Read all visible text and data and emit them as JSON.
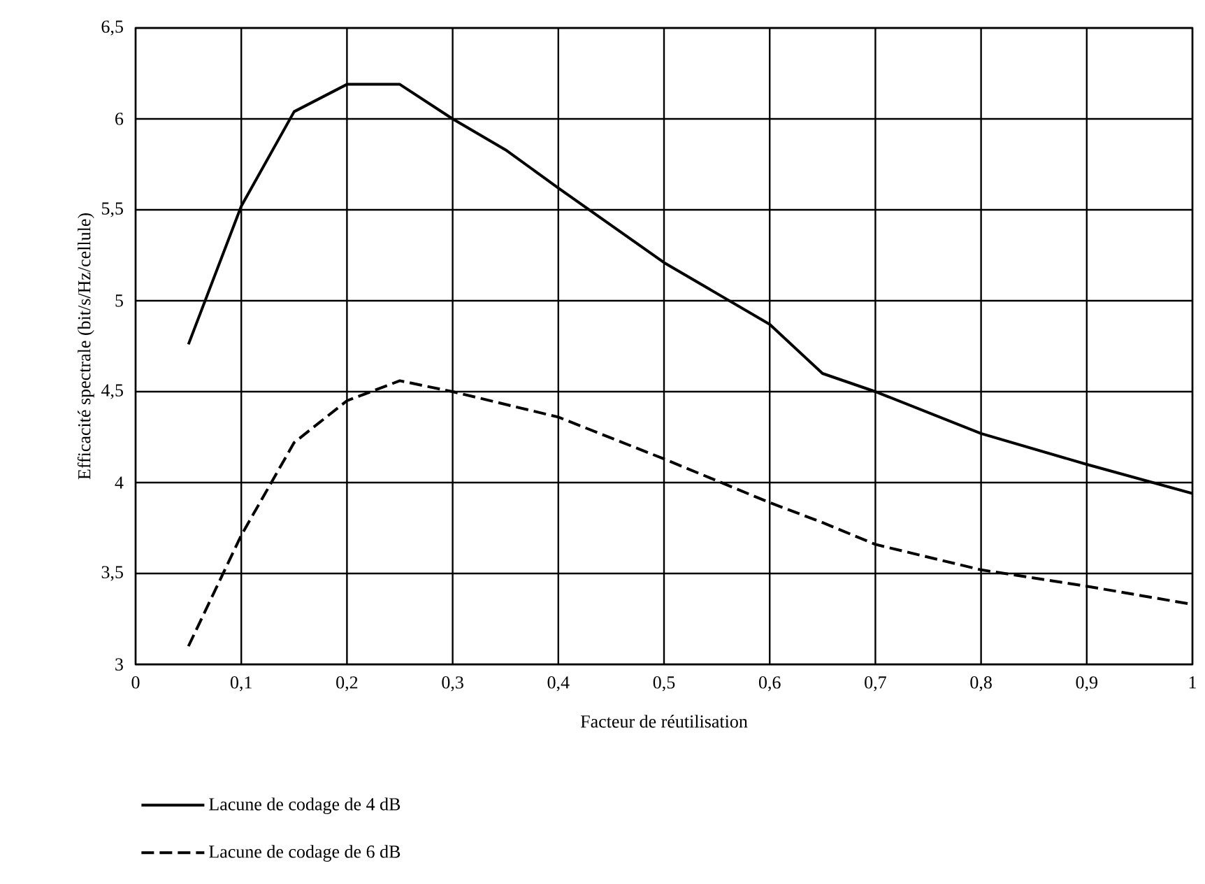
{
  "chart_data": {
    "type": "line",
    "xlabel": "Facteur de réutilisation",
    "ylabel": "Efficacité spectrale (bit/s/Hz/cellule)",
    "x": [
      0.05,
      0.1,
      0.15,
      0.2,
      0.25,
      0.3,
      0.35,
      0.4,
      0.5,
      0.6,
      0.65,
      0.7,
      0.8,
      0.9,
      1.0
    ],
    "series": [
      {
        "name": "Lacune de codage de 4 dB",
        "color": "#000000",
        "line_style": "solid",
        "values": [
          4.76,
          5.52,
          6.04,
          6.19,
          6.19,
          6.0,
          5.83,
          5.62,
          5.21,
          4.87,
          4.6,
          4.5,
          4.27,
          4.1,
          3.94
        ]
      },
      {
        "name": "Lacune de codage de 6 dB",
        "color": "#000000",
        "line_style": "dashed",
        "values": [
          3.1,
          3.71,
          4.22,
          4.45,
          4.56,
          4.5,
          4.43,
          4.36,
          4.13,
          3.89,
          3.78,
          3.66,
          3.52,
          3.43,
          3.33
        ]
      }
    ],
    "xlim": [
      0,
      1
    ],
    "ylim": [
      3,
      6.5
    ],
    "xticks": [
      0,
      {
        "value": 0.1,
        "label": "0,1"
      },
      {
        "value": 0.2,
        "label": "0,2"
      },
      {
        "value": 0.3,
        "label": "0,3"
      },
      {
        "value": 0.4,
        "label": "0,4"
      },
      {
        "value": 0.5,
        "label": "0,5"
      },
      {
        "value": 0.6,
        "label": "0,6"
      },
      {
        "value": 0.7,
        "label": "0,7"
      },
      {
        "value": 0.8,
        "label": "0,8"
      },
      {
        "value": 0.9,
        "label": "0,9"
      },
      1
    ],
    "yticks": [
      3,
      {
        "value": 3.5,
        "label": "3,5"
      },
      4,
      {
        "value": 4.5,
        "label": "4,5"
      },
      5,
      {
        "value": 5.5,
        "label": "5,5"
      },
      6,
      {
        "value": 6.5,
        "label": "6,5"
      }
    ],
    "grid": true,
    "legend": "bottom",
    "marker": "none"
  }
}
